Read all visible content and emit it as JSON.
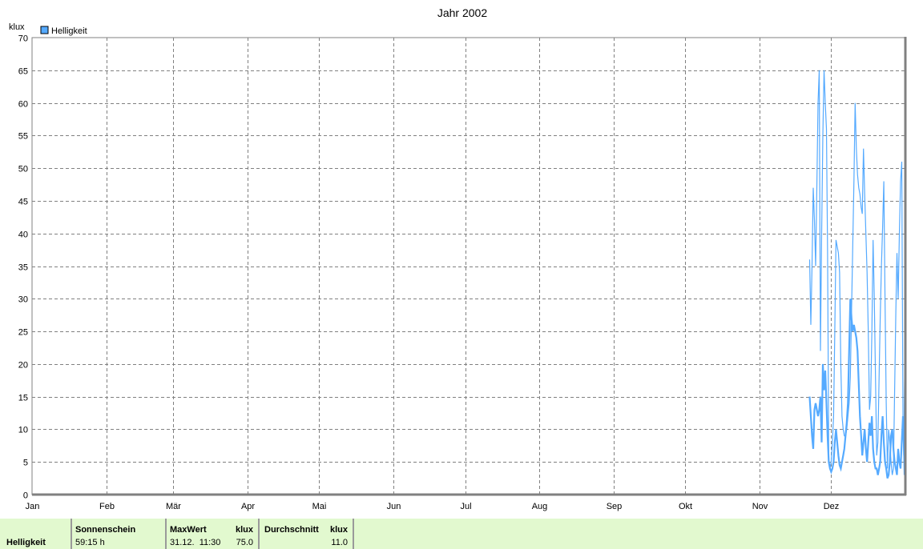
{
  "chart_data": {
    "type": "line",
    "title": "Jahr 2002",
    "ylabel": "klux",
    "ylim": [
      0,
      70
    ],
    "yticks": [
      0,
      5,
      10,
      15,
      20,
      25,
      30,
      35,
      40,
      45,
      50,
      55,
      60,
      65,
      70
    ],
    "xlim": [
      "2002-01-01",
      "2002-12-31"
    ],
    "xticks": [
      {
        "label": "Jan",
        "date": "2002-01-01"
      },
      {
        "label": "Feb",
        "date": "2002-02-01"
      },
      {
        "label": "Mär",
        "date": "2002-03-01"
      },
      {
        "label": "Apr",
        "date": "2002-04-01"
      },
      {
        "label": "Mai",
        "date": "2002-05-01"
      },
      {
        "label": "Jun",
        "date": "2002-06-01"
      },
      {
        "label": "Jul",
        "date": "2002-07-01"
      },
      {
        "label": "Aug",
        "date": "2002-08-01"
      },
      {
        "label": "Sep",
        "date": "2002-09-01"
      },
      {
        "label": "Okt",
        "date": "2002-10-01"
      },
      {
        "label": "Nov",
        "date": "2002-11-01"
      },
      {
        "label": "Dez",
        "date": "2002-12-01"
      }
    ],
    "grid": true,
    "legend": {
      "placement": "top-left",
      "entries": [
        "Helligkeit"
      ]
    },
    "series": [
      {
        "name": "Helligkeit",
        "color": "#55aaff",
        "start": "2002-11-22 00:00",
        "step_hours": 12,
        "values": [
          36,
          26,
          35,
          47,
          42,
          35,
          47,
          60,
          65,
          22,
          40,
          55,
          65,
          60,
          56,
          37,
          5,
          4,
          5,
          8,
          12,
          25,
          39,
          38,
          37,
          34,
          20,
          12,
          10,
          9,
          9,
          10,
          12,
          14,
          18,
          28,
          38,
          48,
          60,
          53,
          49,
          47,
          46,
          44,
          43,
          53,
          46,
          40,
          34,
          25,
          13,
          15,
          25,
          39,
          30,
          18,
          6,
          8,
          18,
          27,
          35,
          41,
          48,
          30,
          14,
          4,
          10,
          8,
          5,
          3,
          4,
          16,
          28,
          37,
          30,
          40,
          48,
          51,
          12,
          3,
          41
        ]
      },
      {
        "color": "#55aaff",
        "start": "2002-11-22 00:00",
        "step_hours": 12,
        "values": [
          15,
          12,
          9,
          7,
          13,
          14,
          13,
          12,
          13,
          15,
          8,
          20,
          16,
          19,
          14,
          9,
          5,
          4,
          3.5,
          4,
          5,
          8,
          10,
          8,
          6,
          4.5,
          4,
          5,
          6,
          7,
          9,
          11,
          14,
          22,
          30,
          27,
          25,
          26,
          25,
          24,
          22,
          17,
          12,
          9,
          6,
          8,
          10,
          7,
          5,
          8,
          11,
          9,
          12,
          7,
          5,
          4,
          4,
          3,
          4,
          5,
          9,
          12,
          8,
          5,
          4,
          2.5,
          3,
          5,
          9,
          10,
          7,
          5,
          4,
          3,
          7,
          5,
          4,
          8,
          12,
          6,
          22
        ]
      }
    ]
  },
  "table": {
    "row_label": "Helligkeit",
    "sonnenschein": {
      "header": "Sonnenschein",
      "value": "59:15 h"
    },
    "maxwert": {
      "header": "MaxWert",
      "unit": "klux",
      "date": "31.12.  11:30",
      "value": "75.0"
    },
    "durchschnitt": {
      "header": "Durchschnitt",
      "unit": "klux",
      "value": "11.0"
    }
  }
}
